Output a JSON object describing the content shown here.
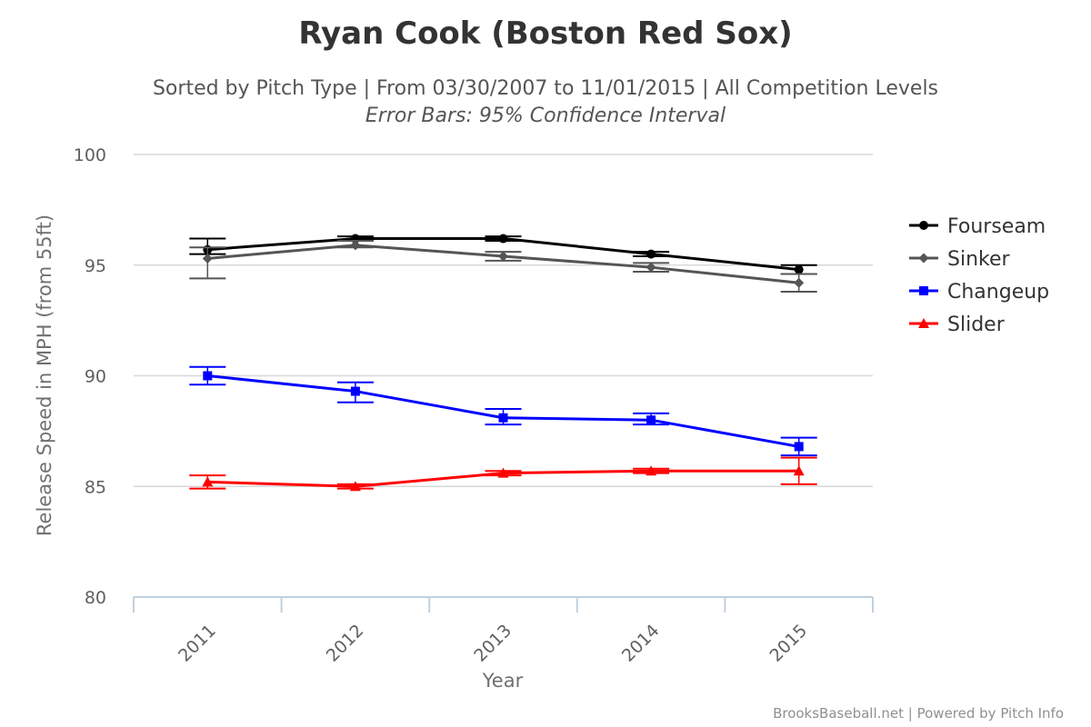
{
  "chart_data": {
    "type": "line",
    "title": "Ryan Cook (Boston Red Sox)",
    "subtitle": "Sorted by Pitch Type | From 03/30/2007 to 11/01/2015 | All Competition Levels",
    "subtitle2": "Error Bars: 95% Confidence Interval",
    "xlabel": "Year",
    "ylabel": "Release Speed in MPH (from 55ft)",
    "categories": [
      "2011",
      "2012",
      "2013",
      "2014",
      "2015"
    ],
    "ylim": [
      80,
      100
    ],
    "yticks": [
      80,
      85,
      90,
      95,
      100
    ],
    "grid": true,
    "legend_position": "right",
    "error_bars": "95% confidence interval",
    "series": [
      {
        "name": "Fourseam",
        "color": "#000000",
        "marker": "circle",
        "values": [
          95.7,
          96.2,
          96.2,
          95.5,
          94.8
        ],
        "error_low": [
          95.5,
          96.1,
          96.1,
          95.4,
          94.6
        ],
        "error_high": [
          96.2,
          96.3,
          96.3,
          95.6,
          95.0
        ]
      },
      {
        "name": "Sinker",
        "color": "#555555",
        "marker": "diamond",
        "values": [
          95.3,
          95.9,
          95.4,
          94.9,
          94.2
        ],
        "error_low": [
          94.4,
          95.8,
          95.2,
          94.7,
          93.8
        ],
        "error_high": [
          95.8,
          96.1,
          95.6,
          95.1,
          94.6
        ]
      },
      {
        "name": "Changeup",
        "color": "#0000ff",
        "marker": "square",
        "values": [
          90.0,
          89.3,
          88.1,
          88.0,
          86.8
        ],
        "error_low": [
          89.6,
          88.8,
          87.8,
          87.8,
          86.4
        ],
        "error_high": [
          90.4,
          89.7,
          88.5,
          88.3,
          87.2
        ]
      },
      {
        "name": "Slider",
        "color": "#ff0000",
        "marker": "triangle",
        "values": [
          85.2,
          85.0,
          85.6,
          85.7,
          85.7
        ],
        "error_low": [
          84.9,
          84.9,
          85.5,
          85.6,
          85.1
        ],
        "error_high": [
          85.5,
          85.1,
          85.7,
          85.8,
          86.3
        ]
      }
    ]
  },
  "credits": "BrooksBaseball.net | Powered by Pitch Info"
}
